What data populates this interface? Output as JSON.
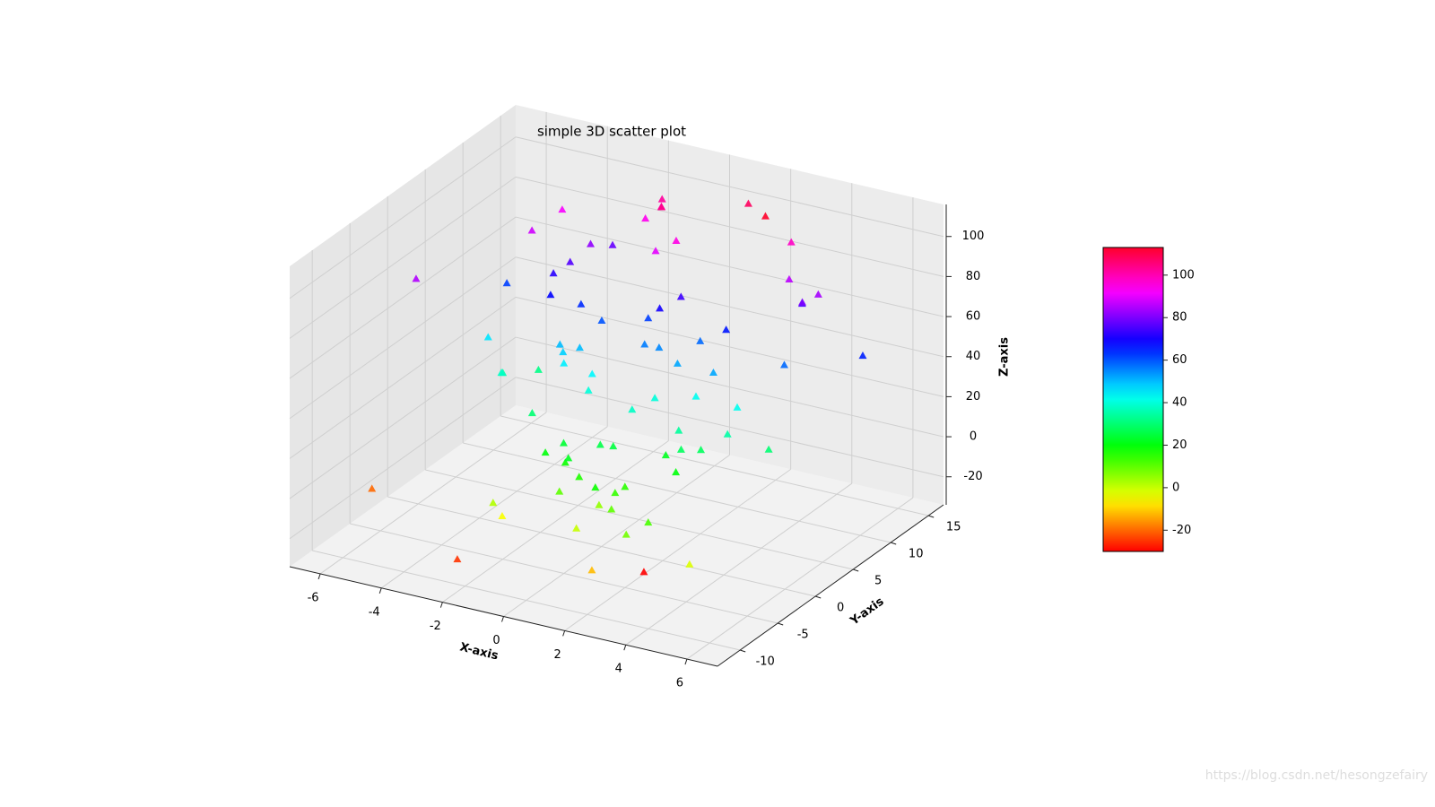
{
  "chart_data": {
    "type": "scatter3d",
    "title": "simple 3D scatter plot",
    "xlabel": "X-axis",
    "ylabel": "Y-axis",
    "zlabel": "Z-axis",
    "marker": "^",
    "colormap": "hsv",
    "grid": true,
    "xlim": [
      -7,
      7
    ],
    "ylim": [
      -13,
      17
    ],
    "zlim": [
      -34,
      116
    ],
    "xticks": [
      -6,
      -4,
      -2,
      0,
      2,
      4,
      6
    ],
    "yticks": [
      -10,
      -5,
      0,
      5,
      10,
      15
    ],
    "zticks": [
      -20,
      0,
      20,
      40,
      60,
      80,
      100
    ],
    "colorbar_ticks": [
      -20,
      0,
      20,
      40,
      60,
      80,
      100
    ],
    "x": [
      6.7,
      -6.7,
      2.2,
      2.8,
      -5.6,
      -3.1,
      1.4,
      0.2,
      -1.8,
      3.5,
      4.6,
      -2.4,
      0.9,
      -0.6,
      2.7,
      -4.2,
      1.9,
      -1.1,
      3.1,
      0.4,
      -3.6,
      2.3,
      -0.3,
      1.2,
      -2.0,
      4.1,
      -1.5,
      0.7,
      2.9,
      -4.8,
      1.6,
      -0.9,
      3.8,
      -2.7,
      0.1,
      5.2,
      -1.3,
      2.1,
      -3.3,
      1.0,
      -0.2,
      3.3,
      -2.2,
      0.6,
      4.4,
      -1.7,
      2.5,
      -0.8,
      1.8,
      -3.9,
      0.3,
      2.6,
      -1.0,
      5.0,
      -2.9,
      1.3,
      -0.5,
      3.7,
      -1.9,
      0.8,
      -4.5,
      2.0,
      -0.1,
      4.0,
      -2.5,
      1.5,
      -1.4,
      3.0,
      -3.0,
      0.5,
      2.4,
      -0.7,
      1.1,
      -2.1,
      3.4,
      -1.6,
      0.0,
      4.8,
      -3.5,
      1.7
    ],
    "y": [
      7.5,
      -3.3,
      -3.3,
      10.4,
      -1.9,
      4.2,
      -6.5,
      9.1,
      2.3,
      -8.0,
      5.6,
      11.2,
      -2.1,
      0.7,
      3.9,
      7.8,
      -4.6,
      12.5,
      -9.3,
      6.1,
      1.5,
      -0.8,
      8.4,
      -5.2,
      3.0,
      10.0,
      -7.1,
      4.8,
      -1.2,
      6.9,
      13.0,
      -3.8,
      2.6,
      9.5,
      -6.0,
      1.1,
      5.3,
      -9.8,
      7.0,
      0.0,
      -4.0,
      11.8,
      3.4,
      -2.6,
      8.8,
      -7.5,
      6.4,
      2.0,
      -5.5,
      10.6,
      4.5,
      -0.3,
      12.0,
      -8.6,
      5.0,
      1.8,
      -3.0,
      9.9,
      -1.5,
      7.3,
      3.2,
      -6.8,
      6.6,
      0.5,
      -9.0,
      4.0,
      11.5,
      -2.3,
      8.0,
      -5.0,
      2.8,
      10.8,
      -7.8,
      5.8,
      -0.6,
      3.6,
      -4.4,
      9.3,
      0.9,
      6.2
    ],
    "z": [
      65,
      -20,
      -30,
      113,
      85,
      32,
      18,
      95,
      45,
      12,
      58,
      78,
      25,
      40,
      52,
      88,
      15,
      102,
      8,
      70,
      36,
      22,
      90,
      5,
      48,
      75,
      -5,
      55,
      28,
      62,
      108,
      20,
      42,
      82,
      10,
      30,
      60,
      -12,
      72,
      38,
      18,
      98,
      50,
      26,
      80,
      2,
      66,
      44,
      14,
      92,
      56,
      34,
      100,
      -2,
      68,
      40,
      24,
      86,
      30,
      74,
      46,
      10,
      62,
      35,
      -25,
      52,
      94,
      20,
      76,
      16,
      42,
      104,
      0,
      64,
      28,
      50,
      22,
      84,
      38,
      58
    ]
  },
  "watermark": "https://blog.csdn.net/hesongzefairy"
}
